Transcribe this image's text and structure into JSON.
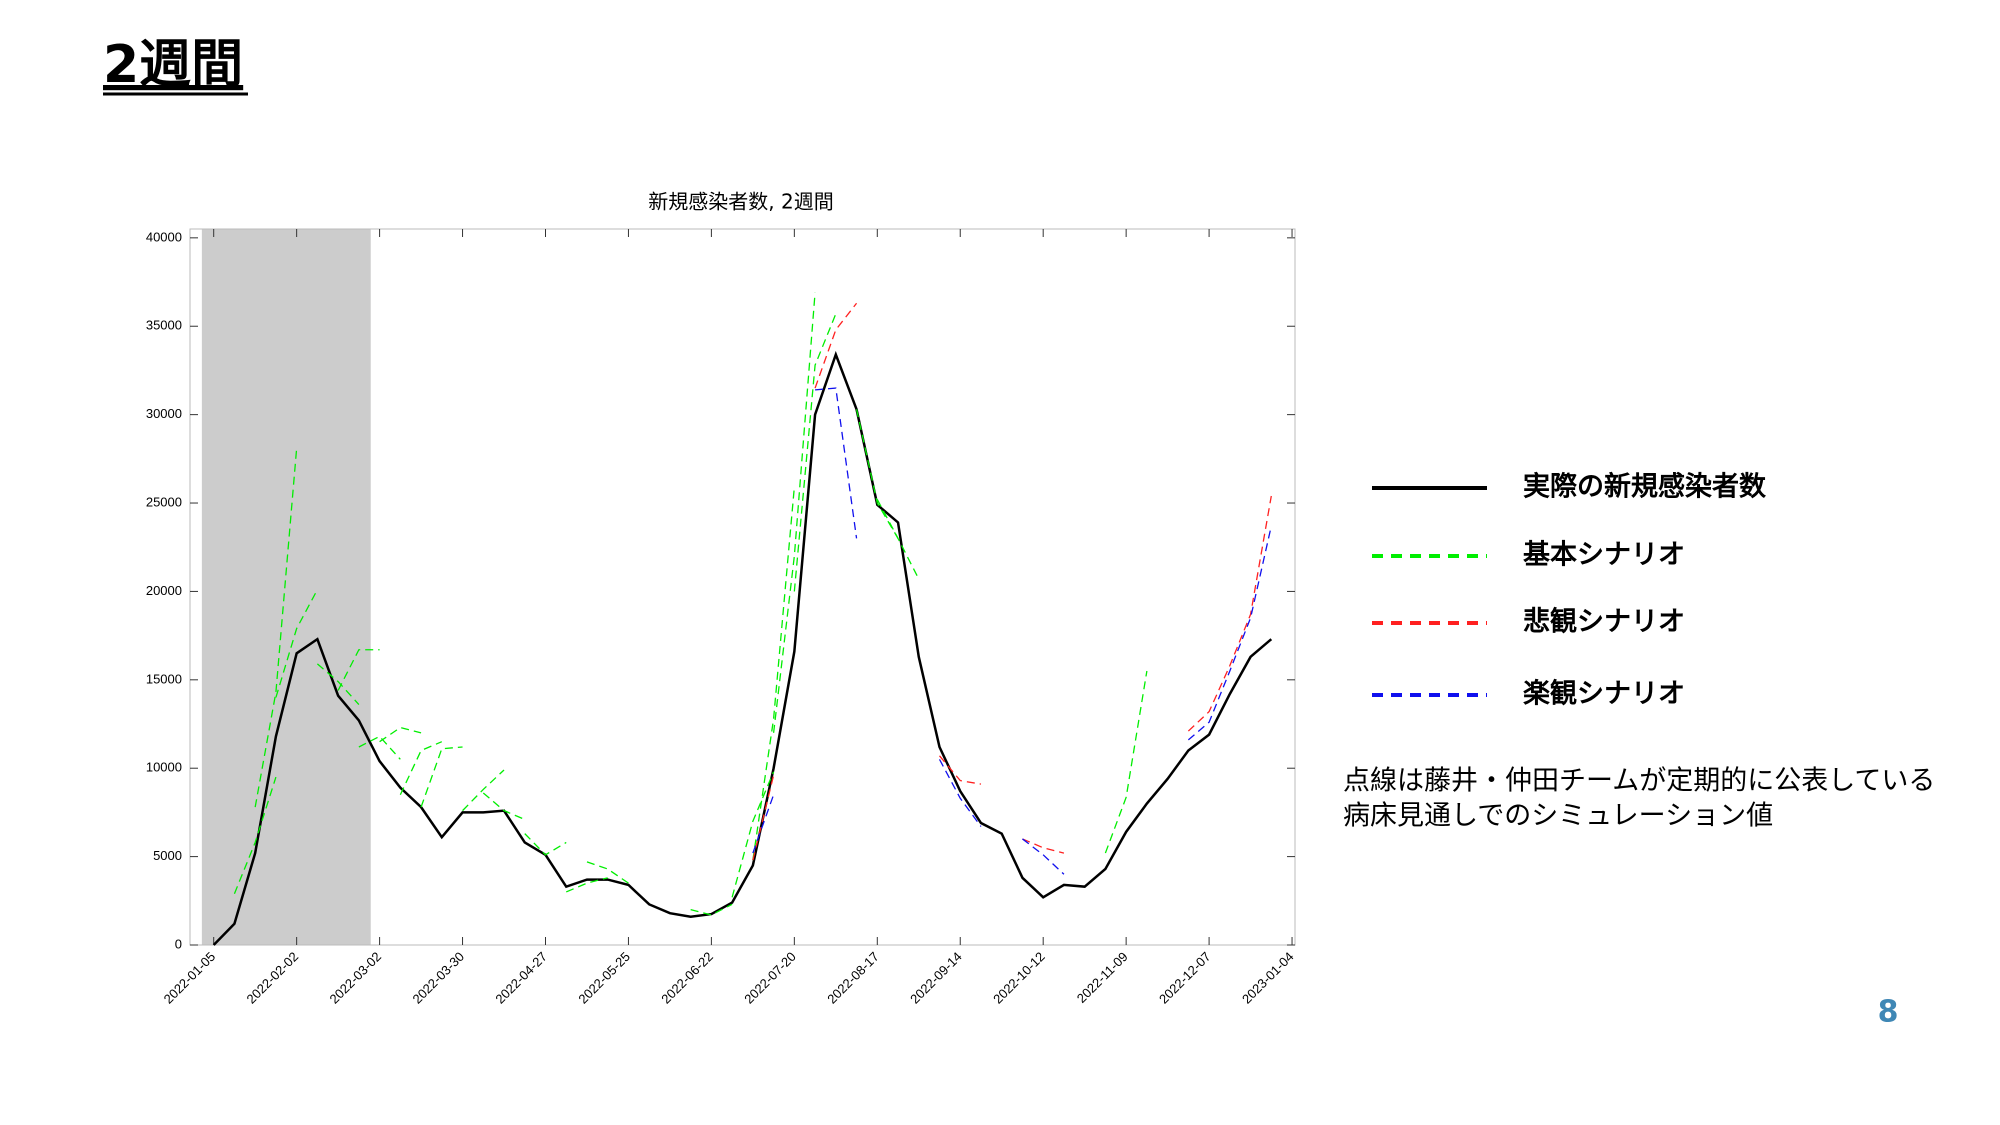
{
  "slide_title": "2週間",
  "page_number": "8",
  "note": [
    "点線は藤井・仲田チームが定期的に公表している",
    "病床見通しでのシミュレーション値"
  ],
  "chart_data": {
    "type": "line",
    "title": "新規感染者数, 2週間",
    "xlim": [
      "2021-12-28",
      "2023-01-05"
    ],
    "ylim": [
      0,
      40500
    ],
    "yticks": [
      0,
      5000,
      10000,
      15000,
      20000,
      25000,
      30000,
      35000,
      40000
    ],
    "xticks": [
      "2022-01-05",
      "2022-02-02",
      "2022-03-02",
      "2022-03-30",
      "2022-04-27",
      "2022-05-25",
      "2022-06-22",
      "2022-07-20",
      "2022-08-17",
      "2022-09-14",
      "2022-10-12",
      "2022-11-09",
      "2022-12-07",
      "2023-01-04"
    ],
    "shaded_region": [
      "2022-01-01",
      "2022-02-27"
    ],
    "shaded_color": "#cccccc",
    "grid": false,
    "legend": "right",
    "series": [
      {
        "name": "実際の新規感染者数",
        "color": "#000000",
        "dashed": false,
        "x": [
          "2022-01-05",
          "2022-01-12",
          "2022-01-19",
          "2022-01-26",
          "2022-02-02",
          "2022-02-09",
          "2022-02-16",
          "2022-02-23",
          "2022-03-02",
          "2022-03-09",
          "2022-03-16",
          "2022-03-23",
          "2022-03-30",
          "2022-04-06",
          "2022-04-13",
          "2022-04-20",
          "2022-04-27",
          "2022-05-04",
          "2022-05-11",
          "2022-05-18",
          "2022-05-25",
          "2022-06-01",
          "2022-06-08",
          "2022-06-15",
          "2022-06-22",
          "2022-06-29",
          "2022-07-06",
          "2022-07-13",
          "2022-07-20",
          "2022-07-27",
          "2022-08-03",
          "2022-08-10",
          "2022-08-17",
          "2022-08-24",
          "2022-08-31",
          "2022-09-07",
          "2022-09-14",
          "2022-09-21",
          "2022-09-28",
          "2022-10-05",
          "2022-10-12",
          "2022-10-19",
          "2022-10-26",
          "2022-11-02",
          "2022-11-09",
          "2022-11-16",
          "2022-11-23",
          "2022-11-30",
          "2022-12-07",
          "2022-12-14",
          "2022-12-21",
          "2022-12-28"
        ],
        "values": [
          0,
          1200,
          5200,
          11800,
          16500,
          17300,
          14100,
          12700,
          10400,
          8900,
          7800,
          6100,
          7500,
          7500,
          7600,
          5800,
          5100,
          3300,
          3700,
          3700,
          3400,
          2300,
          1800,
          1600,
          1750,
          2400,
          4500,
          10000,
          16600,
          30000,
          33400,
          30300,
          24900,
          23900,
          16300,
          11200,
          8700,
          6900,
          6300,
          3800,
          2700,
          3400,
          3300,
          4300,
          6400,
          8000,
          9400,
          11000,
          11900,
          14200,
          16300,
          17300
        ]
      },
      {
        "name": "基本シナリオ",
        "color": "#00ee00",
        "dashed": true,
        "segments": [
          {
            "x": [
              "2022-01-12",
              "2022-01-19",
              "2022-01-26"
            ],
            "values": [
              2900,
              5800,
              9500
            ]
          },
          {
            "x": [
              "2022-01-19",
              "2022-01-26",
              "2022-02-02"
            ],
            "values": [
              7800,
              14300,
              28100
            ]
          },
          {
            "x": [
              "2022-01-26",
              "2022-02-02",
              "2022-02-09"
            ],
            "values": [
              14000,
              17900,
              20100
            ]
          },
          {
            "x": [
              "2022-02-09",
              "2022-02-16",
              "2022-02-23"
            ],
            "values": [
              15900,
              14900,
              13600
            ]
          },
          {
            "x": [
              "2022-02-16",
              "2022-02-23",
              "2022-03-02"
            ],
            "values": [
              14400,
              16700,
              16700
            ]
          },
          {
            "x": [
              "2022-02-23",
              "2022-03-02",
              "2022-03-09"
            ],
            "values": [
              11200,
              11800,
              10500
            ]
          },
          {
            "x": [
              "2022-03-02",
              "2022-03-09",
              "2022-03-16"
            ],
            "values": [
              11500,
              12300,
              12000
            ]
          },
          {
            "x": [
              "2022-03-09",
              "2022-03-16",
              "2022-03-23"
            ],
            "values": [
              8500,
              11000,
              11500
            ]
          },
          {
            "x": [
              "2022-03-16",
              "2022-03-23",
              "2022-03-30"
            ],
            "values": [
              7800,
              11100,
              11200
            ]
          },
          {
            "x": [
              "2022-03-30",
              "2022-04-06",
              "2022-04-13"
            ],
            "values": [
              7600,
              8800,
              9900
            ]
          },
          {
            "x": [
              "2022-04-06",
              "2022-04-13",
              "2022-04-20"
            ],
            "values": [
              8600,
              7600,
              7100
            ]
          },
          {
            "x": [
              "2022-04-20",
              "2022-04-27",
              "2022-05-04"
            ],
            "values": [
              6300,
              5100,
              5800
            ]
          },
          {
            "x": [
              "2022-05-04",
              "2022-05-11",
              "2022-05-18"
            ],
            "values": [
              3000,
              3500,
              3800
            ]
          },
          {
            "x": [
              "2022-05-11",
              "2022-05-18",
              "2022-05-25"
            ],
            "values": [
              4700,
              4300,
              3500
            ]
          },
          {
            "x": [
              "2022-06-15",
              "2022-06-22",
              "2022-06-29"
            ],
            "values": [
              2000,
              1700,
              2300
            ]
          },
          {
            "x": [
              "2022-06-29",
              "2022-07-06",
              "2022-07-13"
            ],
            "values": [
              2700,
              7000,
              9800
            ]
          },
          {
            "x": [
              "2022-07-06",
              "2022-07-13",
              "2022-07-20"
            ],
            "values": [
              4800,
              12800,
              25900
            ]
          },
          {
            "x": [
              "2022-07-13",
              "2022-07-20",
              "2022-07-27"
            ],
            "values": [
              12000,
              22000,
              36900
            ]
          },
          {
            "x": [
              "2022-07-20",
              "2022-07-27",
              "2022-08-03"
            ],
            "values": [
              20000,
              32800,
              35700
            ]
          },
          {
            "x": [
              "2022-08-10",
              "2022-08-17",
              "2022-08-24"
            ],
            "values": [
              30300,
              25000,
              23000
            ]
          },
          {
            "x": [
              "2022-08-17",
              "2022-08-24",
              "2022-08-31"
            ],
            "values": [
              25200,
              23000,
              20700
            ]
          },
          {
            "x": [
              "2022-11-02",
              "2022-11-09",
              "2022-11-16"
            ],
            "values": [
              5200,
              8350,
              15500
            ]
          }
        ]
      },
      {
        "name": "悲観シナリオ",
        "color": "#ff2020",
        "dashed": true,
        "segments": [
          {
            "x": [
              "2022-07-06",
              "2022-07-13"
            ],
            "values": [
              4800,
              9600
            ]
          },
          {
            "x": [
              "2022-07-27",
              "2022-08-03",
              "2022-08-10"
            ],
            "values": [
              31500,
              34800,
              36300
            ]
          },
          {
            "x": [
              "2022-09-07",
              "2022-09-14",
              "2022-09-21"
            ],
            "values": [
              10700,
              9300,
              9100
            ]
          },
          {
            "x": [
              "2022-10-05",
              "2022-10-12",
              "2022-10-19"
            ],
            "values": [
              6000,
              5500,
              5200
            ]
          },
          {
            "x": [
              "2022-11-30",
              "2022-12-07",
              "2022-12-14",
              "2022-12-21",
              "2022-12-28"
            ],
            "values": [
              12100,
              13200,
              15800,
              18700,
              25400
            ]
          }
        ]
      },
      {
        "name": "楽観シナリオ",
        "color": "#1010ee",
        "dashed": true,
        "segments": [
          {
            "x": [
              "2022-07-06",
              "2022-07-13"
            ],
            "values": [
              5200,
              8500
            ]
          },
          {
            "x": [
              "2022-07-27",
              "2022-08-03",
              "2022-08-10"
            ],
            "values": [
              31400,
              31500,
              23000
            ]
          },
          {
            "x": [
              "2022-09-07",
              "2022-09-14",
              "2022-09-21"
            ],
            "values": [
              10500,
              8300,
              6700
            ]
          },
          {
            "x": [
              "2022-10-05",
              "2022-10-12",
              "2022-10-19"
            ],
            "values": [
              6000,
              5100,
              4000
            ]
          },
          {
            "x": [
              "2022-11-30",
              "2022-12-07",
              "2022-12-14",
              "2022-12-21",
              "2022-12-28"
            ],
            "values": [
              11600,
              12600,
              15500,
              18500,
              23700
            ]
          }
        ]
      }
    ]
  }
}
